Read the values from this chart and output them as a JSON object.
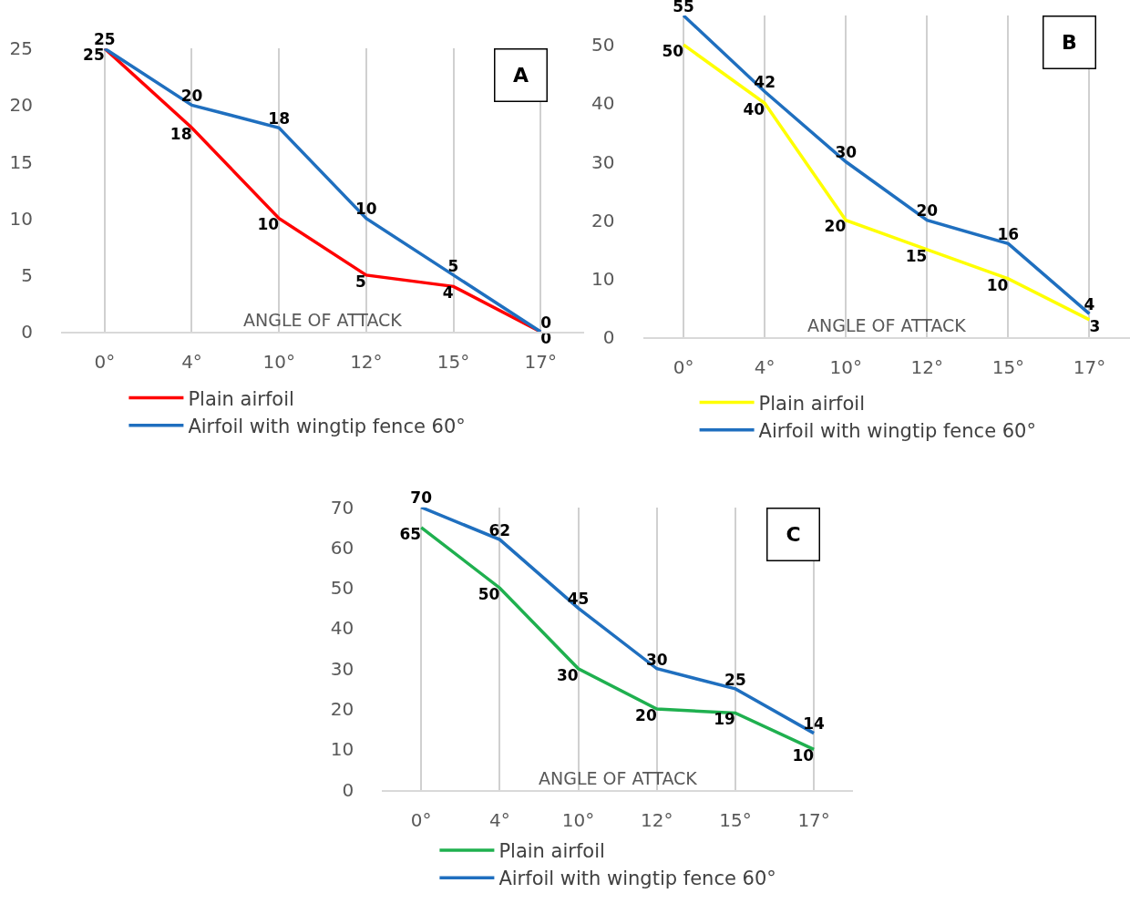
{
  "chart_data": [
    {
      "type": "line",
      "title": "A",
      "xlabel": "ANGLE OF ATTACK",
      "categories": [
        "0°",
        "4°",
        "10°",
        "12°",
        "15°",
        "17°"
      ],
      "ylim": [
        0,
        25
      ],
      "yticks": [
        0,
        5,
        10,
        15,
        20,
        25
      ],
      "grid": "x",
      "legend": "bottom",
      "data_labels": true,
      "marker": "none",
      "line_style": "solid",
      "series": [
        {
          "name": "Plain airfoil",
          "color": "#ff0000",
          "values": [
            25,
            18,
            10,
            5,
            4,
            0
          ]
        },
        {
          "name": "Airfoil with wingtip fence 60°",
          "color": "#1f6fbf",
          "values": [
            25,
            20,
            18,
            10,
            5,
            0
          ]
        }
      ]
    },
    {
      "type": "line",
      "title": "B",
      "xlabel": "ANGLE OF ATTACK",
      "categories": [
        "0°",
        "4°",
        "10°",
        "12°",
        "15°",
        "17°"
      ],
      "ylim": [
        0,
        55
      ],
      "yticks": [
        0,
        10,
        20,
        30,
        40,
        50
      ],
      "grid": "x",
      "legend": "bottom",
      "data_labels": true,
      "marker": "none",
      "line_style": "solid",
      "series": [
        {
          "name": "Plain airfoil",
          "color": "#ffff00",
          "values": [
            50,
            40,
            20,
            15,
            10,
            3
          ]
        },
        {
          "name": "Airfoil with wingtip fence 60°",
          "color": "#1f6fbf",
          "values": [
            55,
            42,
            30,
            20,
            16,
            4
          ]
        }
      ]
    },
    {
      "type": "line",
      "title": "C",
      "xlabel": "ANGLE OF ATTACK",
      "categories": [
        "0°",
        "4°",
        "10°",
        "12°",
        "15°",
        "17°"
      ],
      "ylim": [
        0,
        70
      ],
      "yticks": [
        0,
        10,
        20,
        30,
        40,
        50,
        60,
        70
      ],
      "grid": "x",
      "legend": "bottom",
      "data_labels": true,
      "marker": "none",
      "line_style": "solid",
      "series": [
        {
          "name": "Plain airfoil",
          "color": "#1fb04f",
          "values": [
            65,
            50,
            30,
            20,
            19,
            10
          ]
        },
        {
          "name": "Airfoil with wingtip fence 60°",
          "color": "#1f6fbf",
          "values": [
            70,
            62,
            45,
            30,
            25,
            14
          ]
        }
      ]
    }
  ]
}
